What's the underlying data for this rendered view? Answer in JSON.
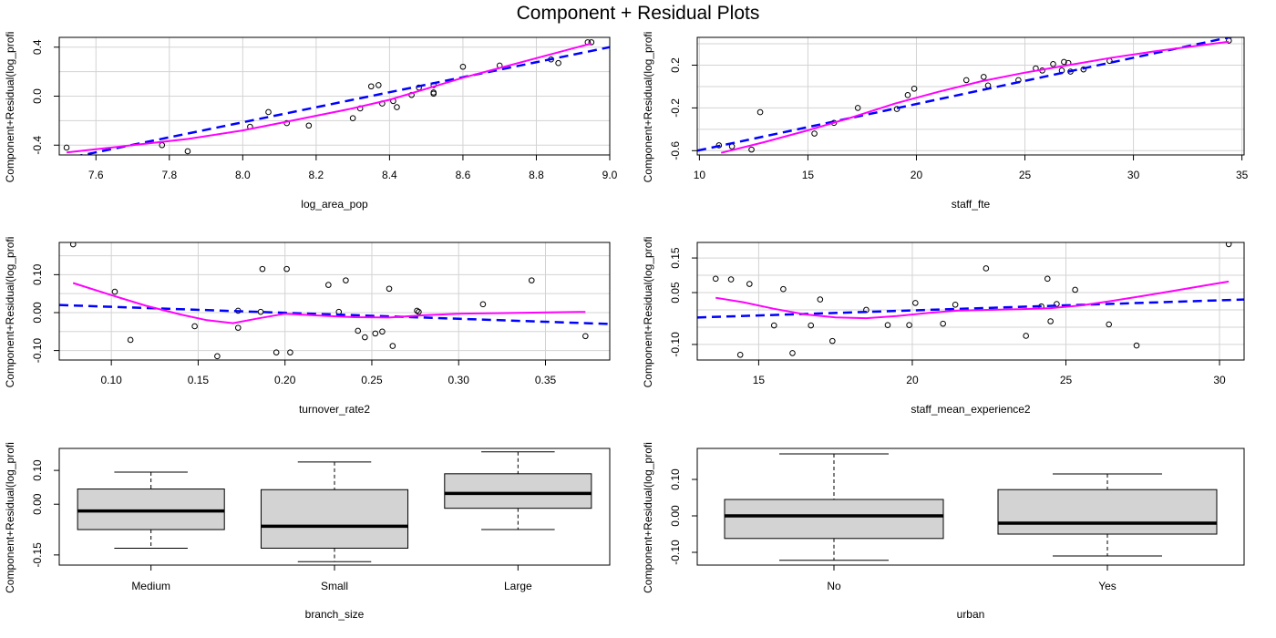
{
  "page_title": "Component + Residual Plots",
  "colors": {
    "frame": "#000000",
    "grid": "#d3d3d3",
    "linear_fit": "#0000ff",
    "smooth_fit": "#ff00ff",
    "box_fill": "#d3d3d3",
    "points": "#000000"
  },
  "chart_data": [
    {
      "id": "log_area_pop",
      "type": "scatter",
      "xlabel": "log_area_pop",
      "ylabel": "Component+Residual(log_profi",
      "xlim": [
        7.5,
        9.0
      ],
      "ylim": [
        -0.48,
        0.48
      ],
      "xticks": [
        7.6,
        7.8,
        8.0,
        8.2,
        8.4,
        8.6,
        8.8,
        9.0
      ],
      "xtick_labels": [
        "7.6",
        "7.8",
        "8.0",
        "8.2",
        "8.4",
        "8.6",
        "8.8",
        "9.0"
      ],
      "yticks": [
        -0.4,
        0.0,
        0.4
      ],
      "ytick_labels": [
        "-0.4",
        "0.0",
        "0.4"
      ],
      "grid_x": [
        7.6,
        7.8,
        8.0,
        8.2,
        8.4,
        8.6,
        8.8,
        9.0
      ],
      "grid_y": [
        -0.4,
        -0.2,
        0.0,
        0.2,
        0.4
      ],
      "grid": true,
      "points": {
        "x": [
          7.52,
          7.78,
          7.85,
          8.02,
          8.07,
          8.12,
          8.18,
          8.3,
          8.32,
          8.35,
          8.37,
          8.38,
          8.41,
          8.42,
          8.46,
          8.48,
          8.52,
          8.52,
          8.52,
          8.6,
          8.7,
          8.84,
          8.86,
          8.94,
          8.95
        ],
        "y": [
          -0.42,
          -0.4,
          -0.45,
          -0.25,
          -0.13,
          -0.22,
          -0.24,
          -0.18,
          -0.1,
          0.08,
          0.09,
          -0.06,
          -0.04,
          -0.09,
          0.01,
          0.07,
          0.09,
          0.03,
          0.02,
          0.24,
          0.25,
          0.3,
          0.27,
          0.44,
          0.44
        ]
      },
      "linear_fit": {
        "x": [
          7.5,
          9.0
        ],
        "y": [
          -0.52,
          0.4
        ]
      },
      "smooth_fit": {
        "x": [
          7.52,
          7.7,
          7.85,
          8.0,
          8.1,
          8.2,
          8.3,
          8.4,
          8.5,
          8.6,
          8.7,
          8.8,
          8.95
        ],
        "y": [
          -0.46,
          -0.4,
          -0.35,
          -0.28,
          -0.22,
          -0.16,
          -0.1,
          -0.03,
          0.06,
          0.15,
          0.23,
          0.31,
          0.43
        ]
      }
    },
    {
      "id": "staff_fte",
      "type": "scatter",
      "xlabel": "staff_fte",
      "ylabel": "Component+Residual(log_profi",
      "xlim": [
        9.9,
        35.1
      ],
      "ylim": [
        -0.64,
        0.46
      ],
      "xticks": [
        10,
        15,
        20,
        25,
        30,
        35
      ],
      "xtick_labels": [
        "10",
        "15",
        "20",
        "25",
        "30",
        "35"
      ],
      "yticks": [
        -0.6,
        -0.2,
        0.2
      ],
      "ytick_labels": [
        "-0.6",
        "-0.2",
        "0.2"
      ],
      "grid_x": [
        10,
        15,
        20,
        25,
        30,
        35
      ],
      "grid_y": [
        -0.6,
        -0.4,
        -0.2,
        0.0,
        0.2,
        0.4
      ],
      "grid": true,
      "points": {
        "x": [
          10.9,
          11.5,
          12.4,
          12.8,
          15.3,
          16.2,
          17.3,
          19.1,
          19.6,
          19.9,
          22.3,
          23.1,
          23.3,
          24.7,
          25.5,
          25.8,
          26.3,
          26.7,
          26.8,
          27.0,
          27.1,
          27.7,
          28.9,
          34.4
        ],
        "y": [
          -0.55,
          -0.56,
          -0.59,
          -0.24,
          -0.44,
          -0.34,
          -0.2,
          -0.21,
          -0.08,
          -0.02,
          0.06,
          0.09,
          0.01,
          0.06,
          0.17,
          0.15,
          0.21,
          0.15,
          0.23,
          0.22,
          0.14,
          0.16,
          0.24,
          0.43
        ]
      },
      "linear_fit": {
        "x": [
          9.9,
          35.1
        ],
        "y": [
          -0.6,
          0.49
        ]
      },
      "smooth_fit": {
        "x": [
          11.0,
          13.0,
          15.0,
          17.0,
          19.0,
          21.0,
          23.0,
          25.0,
          27.0,
          29.0,
          31.0,
          34.4
        ],
        "y": [
          -0.62,
          -0.52,
          -0.41,
          -0.29,
          -0.16,
          -0.05,
          0.05,
          0.13,
          0.2,
          0.27,
          0.33,
          0.42
        ]
      }
    },
    {
      "id": "turnover_rate2",
      "type": "scatter",
      "xlabel": "turnover_rate2",
      "ylabel": "Component+Residual(log_profi",
      "xlim": [
        0.07,
        0.387
      ],
      "ylim": [
        -0.125,
        0.185
      ],
      "xticks": [
        0.1,
        0.15,
        0.2,
        0.25,
        0.3,
        0.35
      ],
      "xtick_labels": [
        "0.10",
        "0.15",
        "0.20",
        "0.25",
        "0.30",
        "0.35"
      ],
      "yticks": [
        -0.1,
        0.0,
        0.1
      ],
      "ytick_labels": [
        "-0.10",
        "0.00",
        "0.10"
      ],
      "grid_x": [
        0.1,
        0.15,
        0.2,
        0.25,
        0.3,
        0.35
      ],
      "grid_y": [
        -0.1,
        -0.05,
        0.0,
        0.05,
        0.1,
        0.15
      ],
      "grid": true,
      "points": {
        "x": [
          0.078,
          0.102,
          0.111,
          0.148,
          0.161,
          0.173,
          0.173,
          0.186,
          0.187,
          0.195,
          0.201,
          0.203,
          0.225,
          0.231,
          0.235,
          0.242,
          0.246,
          0.252,
          0.256,
          0.26,
          0.262,
          0.276,
          0.277,
          0.314,
          0.342,
          0.373
        ],
        "y": [
          0.18,
          0.055,
          -0.072,
          -0.036,
          -0.115,
          -0.04,
          0.005,
          0.002,
          0.115,
          -0.105,
          0.115,
          -0.105,
          0.073,
          0.002,
          0.085,
          -0.048,
          -0.065,
          -0.055,
          -0.05,
          0.063,
          -0.088,
          0.005,
          0.002,
          0.022,
          0.085,
          -0.062
        ]
      },
      "linear_fit": {
        "x": [
          0.07,
          0.387
        ],
        "y": [
          0.02,
          -0.03
        ]
      },
      "smooth_fit": {
        "x": [
          0.078,
          0.1,
          0.12,
          0.14,
          0.155,
          0.17,
          0.185,
          0.2,
          0.22,
          0.24,
          0.26,
          0.28,
          0.3,
          0.33,
          0.373
        ],
        "y": [
          0.078,
          0.046,
          0.018,
          -0.005,
          -0.02,
          -0.028,
          -0.015,
          -0.003,
          -0.008,
          -0.012,
          -0.013,
          -0.007,
          -0.003,
          -0.001,
          0.002
        ]
      }
    },
    {
      "id": "staff_mean_experience2",
      "type": "scatter",
      "xlabel": "staff_mean_experience2",
      "ylabel": "Component+Residual(log_profi",
      "xlim": [
        13.0,
        30.8
      ],
      "ylim": [
        -0.145,
        0.195
      ],
      "xticks": [
        15,
        20,
        25,
        30
      ],
      "xtick_labels": [
        "15",
        "20",
        "25",
        "30"
      ],
      "yticks": [
        -0.1,
        0.05,
        0.15
      ],
      "ytick_labels": [
        "-0.10",
        "0.05",
        "0.15"
      ],
      "grid_x": [
        15,
        20,
        25,
        30
      ],
      "grid_y": [
        -0.1,
        -0.05,
        0.0,
        0.05,
        0.1,
        0.15
      ],
      "grid": true,
      "points": {
        "x": [
          13.6,
          14.1,
          14.4,
          14.7,
          15.5,
          15.8,
          16.1,
          16.7,
          17.0,
          17.4,
          18.5,
          19.2,
          19.9,
          20.1,
          21.0,
          21.4,
          22.4,
          23.7,
          24.2,
          24.4,
          24.5,
          24.7,
          25.3,
          26.4,
          27.3,
          30.3
        ],
        "y": [
          0.09,
          0.088,
          -0.13,
          0.075,
          -0.045,
          0.06,
          -0.125,
          -0.045,
          0.03,
          -0.09,
          0.0,
          -0.044,
          -0.044,
          0.02,
          -0.04,
          0.015,
          0.12,
          -0.075,
          0.01,
          0.09,
          -0.033,
          0.017,
          0.058,
          -0.042,
          -0.103,
          0.19
        ]
      },
      "linear_fit": {
        "x": [
          13.0,
          30.8
        ],
        "y": [
          -0.022,
          0.03
        ]
      },
      "smooth_fit": {
        "x": [
          13.6,
          14.5,
          15.5,
          16.5,
          17.5,
          18.5,
          19.5,
          20.5,
          21.5,
          22.5,
          23.5,
          24.5,
          25.5,
          26.5,
          27.5,
          28.5,
          29.5,
          30.3
        ],
        "y": [
          0.035,
          0.022,
          0.003,
          -0.013,
          -0.022,
          -0.024,
          -0.018,
          -0.009,
          -0.002,
          0.0,
          0.002,
          0.005,
          0.013,
          0.026,
          0.04,
          0.055,
          0.07,
          0.082
        ]
      }
    },
    {
      "id": "branch_size",
      "type": "boxplot",
      "xlabel": "branch_size",
      "ylabel": "Component+Residual(log_profi",
      "categories": [
        "Medium",
        "Small",
        "Large"
      ],
      "ylim": [
        -0.18,
        0.165
      ],
      "yticks": [
        -0.15,
        0.0,
        0.1
      ],
      "ytick_labels": [
        "-0.15",
        "0.00",
        "0.10"
      ],
      "boxes": [
        {
          "min": -0.13,
          "q1": -0.075,
          "median": -0.02,
          "q3": 0.045,
          "max": 0.095
        },
        {
          "min": -0.17,
          "q1": -0.13,
          "median": -0.065,
          "q3": 0.043,
          "max": 0.125
        },
        {
          "min": -0.075,
          "q1": -0.012,
          "median": 0.032,
          "q3": 0.09,
          "max": 0.155
        }
      ]
    },
    {
      "id": "urban",
      "type": "boxplot",
      "xlabel": "urban",
      "ylabel": "Component+Residual(log_profi",
      "categories": [
        "No",
        "Yes"
      ],
      "ylim": [
        -0.135,
        0.185
      ],
      "yticks": [
        -0.1,
        0.0,
        0.1
      ],
      "ytick_labels": [
        "-0.10",
        "0.00",
        "0.10"
      ],
      "boxes": [
        {
          "min": -0.122,
          "q1": -0.062,
          "median": 0.0,
          "q3": 0.045,
          "max": 0.17
        },
        {
          "min": -0.11,
          "q1": -0.05,
          "median": -0.02,
          "q3": 0.072,
          "max": 0.115
        }
      ]
    }
  ]
}
